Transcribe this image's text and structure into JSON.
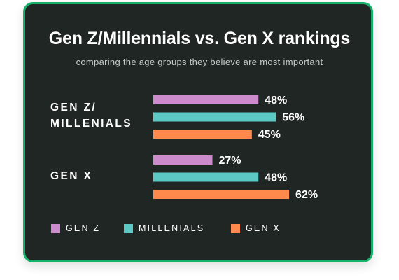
{
  "card": {
    "title": "Gen Z/Millennials vs. Gen X rankings",
    "subtitle": "comparing the age groups they believe are most important"
  },
  "chart_data": {
    "type": "bar",
    "orientation": "horizontal",
    "title": "Gen Z/Millennials vs. Gen X rankings",
    "subtitle": "comparing the age groups they believe are most important",
    "categories": [
      {
        "lines": [
          "GEN Z/",
          "MILLENIALS"
        ]
      },
      {
        "lines": [
          "GEN X"
        ]
      }
    ],
    "series": [
      {
        "name": "GEN Z",
        "color": "#cc8ccc",
        "values": [
          48,
          27
        ],
        "labels": [
          "48%",
          "27%"
        ]
      },
      {
        "name": "MILLENIALS",
        "color": "#5cc9c4",
        "values": [
          56,
          48
        ],
        "labels": [
          "56%",
          "48%"
        ]
      },
      {
        "name": "GEN X",
        "color": "#ff8a4c",
        "values": [
          45,
          62
        ],
        "labels": [
          "45%",
          "62%"
        ]
      }
    ],
    "unit": "%",
    "xlim": [
      0,
      62
    ],
    "grid": false,
    "legend_position": "bottom"
  },
  "legend": [
    {
      "name": "GEN Z",
      "color": "#cc8ccc"
    },
    {
      "name": "MILLENIALS",
      "color": "#5cc9c4"
    },
    {
      "name": "GEN X",
      "color": "#ff8a4c"
    }
  ]
}
